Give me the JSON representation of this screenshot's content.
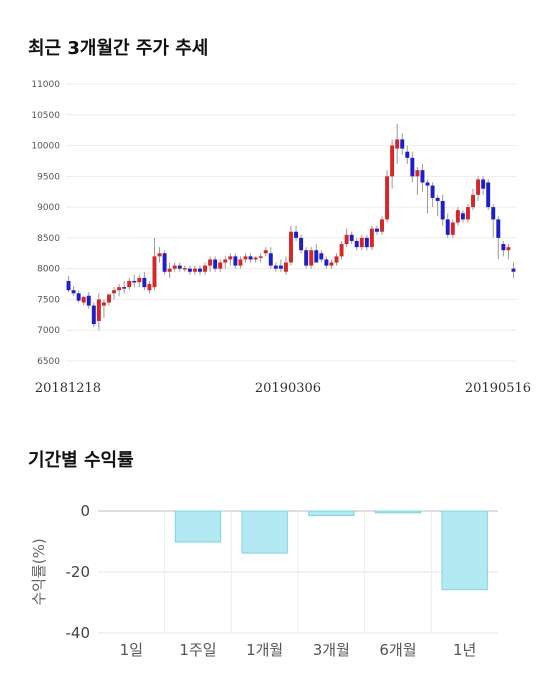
{
  "chart_data": [
    {
      "type": "candlestick",
      "title": "최근 3개월간 주가 추세",
      "ylim": [
        6500,
        11000
      ],
      "y_ticks": [
        "11000",
        "10500",
        "10000",
        "9500",
        "9000",
        "8500",
        "8000",
        "7500",
        "7000",
        "6500"
      ],
      "x_tick_labels": [
        "20181218",
        "20190306",
        "20190516"
      ],
      "up_color": "#d62728",
      "down_color": "#1f1fc8",
      "grid": true,
      "candles": [
        {
          "o": 7800,
          "h": 7880,
          "l": 7620,
          "c": 7650
        },
        {
          "o": 7650,
          "h": 7720,
          "l": 7560,
          "c": 7600
        },
        {
          "o": 7600,
          "h": 7650,
          "l": 7450,
          "c": 7480
        },
        {
          "o": 7450,
          "h": 7560,
          "l": 7400,
          "c": 7540
        },
        {
          "o": 7560,
          "h": 7620,
          "l": 7350,
          "c": 7400
        },
        {
          "o": 7400,
          "h": 7450,
          "l": 7050,
          "c": 7100
        },
        {
          "o": 7150,
          "h": 7600,
          "l": 7000,
          "c": 7500
        },
        {
          "o": 7400,
          "h": 7500,
          "l": 7200,
          "c": 7450
        },
        {
          "o": 7450,
          "h": 7600,
          "l": 7400,
          "c": 7580
        },
        {
          "o": 7600,
          "h": 7700,
          "l": 7500,
          "c": 7650
        },
        {
          "o": 7650,
          "h": 7750,
          "l": 7550,
          "c": 7700
        },
        {
          "o": 7700,
          "h": 7800,
          "l": 7600,
          "c": 7680
        },
        {
          "o": 7700,
          "h": 7850,
          "l": 7650,
          "c": 7800
        },
        {
          "o": 7800,
          "h": 7900,
          "l": 7700,
          "c": 7780
        },
        {
          "o": 7780,
          "h": 7900,
          "l": 7700,
          "c": 7850
        },
        {
          "o": 7850,
          "h": 7950,
          "l": 7650,
          "c": 7700
        },
        {
          "o": 7650,
          "h": 7800,
          "l": 7600,
          "c": 7750
        },
        {
          "o": 7700,
          "h": 8500,
          "l": 7650,
          "c": 8200
        },
        {
          "o": 8200,
          "h": 8350,
          "l": 8100,
          "c": 8250
        },
        {
          "o": 8250,
          "h": 8300,
          "l": 7900,
          "c": 7950
        },
        {
          "o": 7950,
          "h": 8100,
          "l": 7850,
          "c": 8000
        },
        {
          "o": 8000,
          "h": 8100,
          "l": 7950,
          "c": 8050
        },
        {
          "o": 8050,
          "h": 8100,
          "l": 7950,
          "c": 8000
        },
        {
          "o": 8000,
          "h": 8050,
          "l": 7950,
          "c": 8010
        },
        {
          "o": 8000,
          "h": 8050,
          "l": 7900,
          "c": 7950
        },
        {
          "o": 7950,
          "h": 8050,
          "l": 7900,
          "c": 8000
        },
        {
          "o": 8000,
          "h": 8050,
          "l": 7900,
          "c": 7950
        },
        {
          "o": 7950,
          "h": 8100,
          "l": 7900,
          "c": 8050
        },
        {
          "o": 8050,
          "h": 8200,
          "l": 7950,
          "c": 8150
        },
        {
          "o": 8150,
          "h": 8200,
          "l": 7950,
          "c": 8000
        },
        {
          "o": 8000,
          "h": 8150,
          "l": 7950,
          "c": 8100
        },
        {
          "o": 8100,
          "h": 8200,
          "l": 8000,
          "c": 8150
        },
        {
          "o": 8150,
          "h": 8250,
          "l": 8050,
          "c": 8200
        },
        {
          "o": 8200,
          "h": 8250,
          "l": 8000,
          "c": 8050
        },
        {
          "o": 8050,
          "h": 8200,
          "l": 8000,
          "c": 8150
        },
        {
          "o": 8150,
          "h": 8250,
          "l": 8100,
          "c": 8200
        },
        {
          "o": 8200,
          "h": 8250,
          "l": 8100,
          "c": 8150
        },
        {
          "o": 8150,
          "h": 8200,
          "l": 8100,
          "c": 8180
        },
        {
          "o": 8180,
          "h": 8250,
          "l": 8100,
          "c": 8200
        },
        {
          "o": 8250,
          "h": 8350,
          "l": 8200,
          "c": 8300
        },
        {
          "o": 8250,
          "h": 8350,
          "l": 8000,
          "c": 8050
        },
        {
          "o": 8050,
          "h": 8100,
          "l": 7950,
          "c": 8000
        },
        {
          "o": 8050,
          "h": 8150,
          "l": 7950,
          "c": 8000
        },
        {
          "o": 7950,
          "h": 8200,
          "l": 7900,
          "c": 8100
        },
        {
          "o": 8100,
          "h": 8700,
          "l": 8050,
          "c": 8600
        },
        {
          "o": 8600,
          "h": 8700,
          "l": 8450,
          "c": 8500
        },
        {
          "o": 8500,
          "h": 8550,
          "l": 8250,
          "c": 8300
        },
        {
          "o": 8300,
          "h": 8350,
          "l": 8000,
          "c": 8050
        },
        {
          "o": 8050,
          "h": 8350,
          "l": 8000,
          "c": 8300
        },
        {
          "o": 8300,
          "h": 8400,
          "l": 8100,
          "c": 8100
        },
        {
          "o": 8250,
          "h": 8300,
          "l": 8100,
          "c": 8150
        },
        {
          "o": 8150,
          "h": 8200,
          "l": 8000,
          "c": 8050
        },
        {
          "o": 8050,
          "h": 8150,
          "l": 8000,
          "c": 8100
        },
        {
          "o": 8100,
          "h": 8250,
          "l": 8050,
          "c": 8200
        },
        {
          "o": 8200,
          "h": 8450,
          "l": 8150,
          "c": 8400
        },
        {
          "o": 8400,
          "h": 8650,
          "l": 8350,
          "c": 8550
        },
        {
          "o": 8550,
          "h": 8600,
          "l": 8400,
          "c": 8450
        },
        {
          "o": 8450,
          "h": 8500,
          "l": 8300,
          "c": 8350
        },
        {
          "o": 8350,
          "h": 8550,
          "l": 8300,
          "c": 8500
        },
        {
          "o": 8500,
          "h": 8550,
          "l": 8300,
          "c": 8350
        },
        {
          "o": 8350,
          "h": 8700,
          "l": 8300,
          "c": 8650
        },
        {
          "o": 8650,
          "h": 8700,
          "l": 8550,
          "c": 8600
        },
        {
          "o": 8600,
          "h": 8850,
          "l": 8550,
          "c": 8800
        },
        {
          "o": 8800,
          "h": 9600,
          "l": 8750,
          "c": 9500
        },
        {
          "o": 9500,
          "h": 10100,
          "l": 9300,
          "c": 10000
        },
        {
          "o": 9950,
          "h": 10350,
          "l": 9700,
          "c": 10100
        },
        {
          "o": 10100,
          "h": 10200,
          "l": 9850,
          "c": 9950
        },
        {
          "o": 9900,
          "h": 10000,
          "l": 9700,
          "c": 9800
        },
        {
          "o": 9800,
          "h": 9900,
          "l": 9400,
          "c": 9500
        },
        {
          "o": 9500,
          "h": 9650,
          "l": 9200,
          "c": 9600
        },
        {
          "o": 9600,
          "h": 9700,
          "l": 9250,
          "c": 9400
        },
        {
          "o": 9400,
          "h": 9450,
          "l": 8900,
          "c": 9350
        },
        {
          "o": 9350,
          "h": 9400,
          "l": 9000,
          "c": 9150
        },
        {
          "o": 9150,
          "h": 9200,
          "l": 8850,
          "c": 9100
        },
        {
          "o": 9100,
          "h": 9200,
          "l": 8700,
          "c": 8800
        },
        {
          "o": 8800,
          "h": 8900,
          "l": 8500,
          "c": 8550
        },
        {
          "o": 8550,
          "h": 8800,
          "l": 8500,
          "c": 8750
        },
        {
          "o": 8750,
          "h": 9000,
          "l": 8700,
          "c": 8950
        },
        {
          "o": 8900,
          "h": 8950,
          "l": 8750,
          "c": 8800
        },
        {
          "o": 8800,
          "h": 9050,
          "l": 8750,
          "c": 9000
        },
        {
          "o": 9000,
          "h": 9300,
          "l": 8950,
          "c": 9200
        },
        {
          "o": 9200,
          "h": 9500,
          "l": 9100,
          "c": 9450
        },
        {
          "o": 9450,
          "h": 9500,
          "l": 9200,
          "c": 9300
        },
        {
          "o": 9400,
          "h": 9450,
          "l": 8950,
          "c": 9000
        },
        {
          "o": 9000,
          "h": 9050,
          "l": 8500,
          "c": 8800
        },
        {
          "o": 8800,
          "h": 8850,
          "l": 8150,
          "c": 8500
        },
        {
          "o": 8400,
          "h": 8450,
          "l": 8200,
          "c": 8300
        },
        {
          "o": 8300,
          "h": 8400,
          "l": 8150,
          "c": 8350
        },
        {
          "o": 8000,
          "h": 8100,
          "l": 7850,
          "c": 7950
        }
      ]
    },
    {
      "type": "bar",
      "title": "기간별 수익률",
      "ylabel": "수익률(%)",
      "categories": [
        "1일",
        "1주일",
        "1개월",
        "3개월",
        "6개월",
        "1년"
      ],
      "values": [
        0,
        -10.2,
        -13.8,
        -1.5,
        -0.6,
        -25.8
      ],
      "ylim": [
        -40,
        0
      ],
      "y_ticks": [
        "0",
        "-20",
        "-40"
      ],
      "bar_color": "#b2e9f2",
      "bar_border": "#80d4e2",
      "grid": true
    }
  ]
}
